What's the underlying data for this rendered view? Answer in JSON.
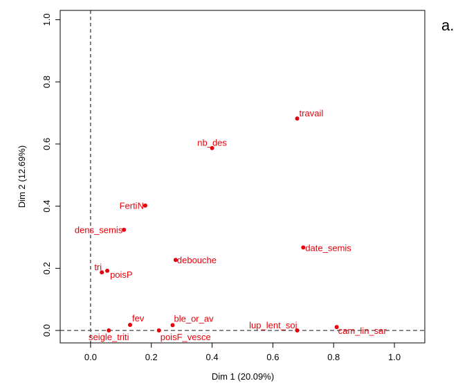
{
  "panel_tag": "a.",
  "chart_data": {
    "type": "scatter",
    "xlabel": "Dim 1 (20.09%)",
    "ylabel": "Dim 2 (12.69%)",
    "xlim": [
      -0.1,
      1.1
    ],
    "ylim": [
      -0.04,
      1.03
    ],
    "x_ticks": [
      "0.0",
      "0.2",
      "0.4",
      "0.6",
      "0.8",
      "1.0"
    ],
    "y_ticks": [
      "0.0",
      "0.2",
      "0.4",
      "0.6",
      "0.8",
      "1.0"
    ],
    "grid": false,
    "reference_lines": [
      "x = 0 dashed",
      "y = 0 dashed"
    ],
    "point_color": "#e8000b",
    "points": [
      {
        "label": "travail",
        "x": 0.68,
        "y": 0.682
      },
      {
        "label": "nb_des",
        "x": 0.4,
        "y": 0.587
      },
      {
        "label": "FertiN",
        "x": 0.18,
        "y": 0.402
      },
      {
        "label": "dens_semis",
        "x": 0.11,
        "y": 0.324
      },
      {
        "label": "date_semis",
        "x": 0.7,
        "y": 0.267
      },
      {
        "label": "debouche",
        "x": 0.28,
        "y": 0.227
      },
      {
        "label": "tri",
        "x": 0.037,
        "y": 0.187
      },
      {
        "label": "poisP",
        "x": 0.055,
        "y": 0.192
      },
      {
        "label": "fev",
        "x": 0.13,
        "y": 0.018
      },
      {
        "label": "ble_or_av",
        "x": 0.27,
        "y": 0.017
      },
      {
        "label": "seigle_triti",
        "x": 0.06,
        "y": 0.0
      },
      {
        "label": "poisF_vesce",
        "x": 0.225,
        "y": 0.0
      },
      {
        "label": "lup_lent_soj",
        "x": 0.68,
        "y": 0.0
      },
      {
        "label": "cam_lin_sar",
        "x": 0.81,
        "y": 0.011
      }
    ]
  }
}
